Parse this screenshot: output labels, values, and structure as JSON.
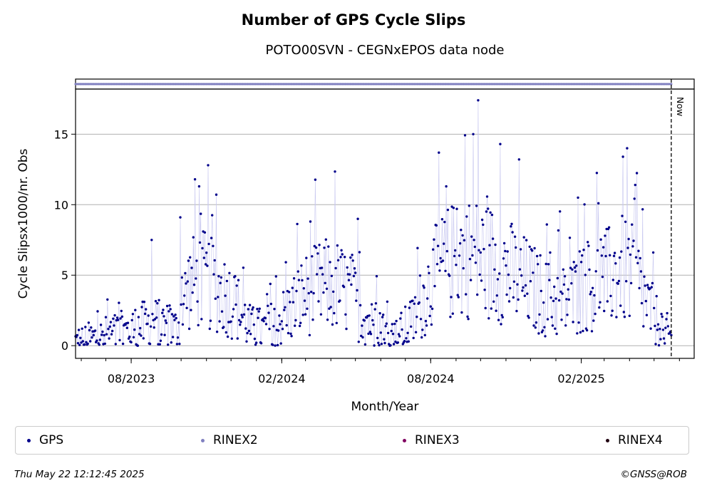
{
  "header": {
    "title": "Number of GPS Cycle Slips",
    "subtitle": "POTO00SVN - CEGNxEPOS data node"
  },
  "chart_data": {
    "type": "scatter",
    "title": "Number of GPS Cycle Slips",
    "subtitle": "POTO00SVN - CEGNxEPOS data node",
    "xlabel": "Month/Year",
    "ylabel": "Cycle Slipsx1000/nr. Obs",
    "x_range": [
      "2023-05-25",
      "2025-06-19"
    ],
    "ylim": [
      -0.9,
      18.2
    ],
    "yticks": [
      0,
      5,
      10,
      15
    ],
    "xticks": [
      "08/2023",
      "02/2024",
      "08/2024",
      "02/2025"
    ],
    "now_label": "Now",
    "now_date": "2025-05-22",
    "grid": "horizontal",
    "legend_position": "bottom",
    "series": [
      {
        "name": "GPS",
        "color": "#00008b",
        "start_date": "2023-05-25",
        "anchors": [
          [
            "2023-05-25",
            0.3
          ],
          [
            "2023-06-15",
            0.5
          ],
          [
            "2023-07-05",
            0.8
          ],
          [
            "2023-07-25",
            1.0
          ],
          [
            "2023-08-15",
            1.4
          ],
          [
            "2023-09-05",
            1.6
          ],
          [
            "2023-09-25",
            1.1
          ],
          [
            "2023-10-10",
            4.2
          ],
          [
            "2023-10-25",
            4.8
          ],
          [
            "2023-11-10",
            4.2
          ],
          [
            "2023-11-25",
            3.6
          ],
          [
            "2023-12-10",
            2.6
          ],
          [
            "2023-12-25",
            1.2
          ],
          [
            "2024-01-10",
            1.1
          ],
          [
            "2024-01-25",
            1.6
          ],
          [
            "2024-02-10",
            2.4
          ],
          [
            "2024-02-25",
            3.4
          ],
          [
            "2024-03-10",
            3.9
          ],
          [
            "2024-03-25",
            4.3
          ],
          [
            "2024-04-10",
            4.2
          ],
          [
            "2024-04-25",
            3.6
          ],
          [
            "2024-05-10",
            2.4
          ],
          [
            "2024-05-25",
            1.2
          ],
          [
            "2024-06-10",
            0.8
          ],
          [
            "2024-06-25",
            0.9
          ],
          [
            "2024-07-10",
            1.6
          ],
          [
            "2024-07-25",
            3.6
          ],
          [
            "2024-08-10",
            5.2
          ],
          [
            "2024-08-25",
            5.9
          ],
          [
            "2024-09-10",
            6.3
          ],
          [
            "2024-09-25",
            6.2
          ],
          [
            "2024-10-10",
            6.0
          ],
          [
            "2024-10-25",
            5.6
          ],
          [
            "2024-11-10",
            5.0
          ],
          [
            "2024-11-25",
            4.4
          ],
          [
            "2024-12-10",
            3.8
          ],
          [
            "2024-12-25",
            3.2
          ],
          [
            "2025-01-10",
            3.1
          ],
          [
            "2025-01-25",
            3.6
          ],
          [
            "2025-02-10",
            4.2
          ],
          [
            "2025-02-25",
            4.5
          ],
          [
            "2025-03-10",
            5.0
          ],
          [
            "2025-03-25",
            5.4
          ],
          [
            "2025-04-10",
            4.6
          ],
          [
            "2025-04-25",
            2.6
          ],
          [
            "2025-05-10",
            1.2
          ],
          [
            "2025-05-22",
            0.6
          ]
        ],
        "spikes": [
          [
            "2023-08-26",
            7.5
          ],
          [
            "2023-09-30",
            9.1
          ],
          [
            "2023-10-18",
            11.8
          ],
          [
            "2023-10-23",
            11.3
          ],
          [
            "2023-11-03",
            12.8
          ],
          [
            "2024-03-07",
            8.8
          ],
          [
            "2024-08-20",
            11.3
          ],
          [
            "2024-09-28",
            17.4
          ],
          [
            "2024-10-25",
            14.3
          ],
          [
            "2024-09-22",
            15.0
          ],
          [
            "2025-01-28",
            10.5
          ],
          [
            "2025-03-24",
            13.4
          ],
          [
            "2025-03-29",
            14.0
          ],
          [
            "2025-04-08",
            11.4
          ],
          [
            "2025-02-22",
            10.1
          ]
        ]
      },
      {
        "name": "RINEX2",
        "color": "#8080c0",
        "value": "constant band at top of plot",
        "date_range": [
          "2023-05-25",
          "2025-05-22"
        ]
      },
      {
        "name": "RINEX3",
        "color": "#800060"
      },
      {
        "name": "RINEX4",
        "color": "#200010"
      }
    ]
  },
  "legend": {
    "items": [
      {
        "label": "GPS",
        "color": "#00008b"
      },
      {
        "label": "RINEX2",
        "color": "#8080c0"
      },
      {
        "label": "RINEX3",
        "color": "#800060"
      },
      {
        "label": "RINEX4",
        "color": "#200010"
      }
    ]
  },
  "footer": {
    "timestamp": "Thu May 22 12:12:45 2025",
    "copyright": "©GNSS@ROB"
  }
}
